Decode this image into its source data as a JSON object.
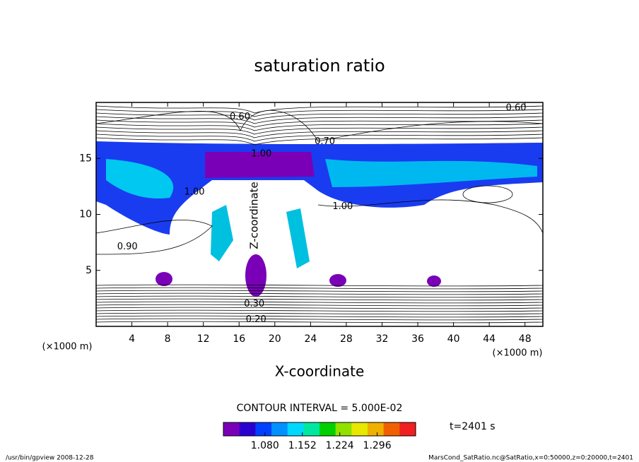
{
  "chart_data": {
    "type": "contour",
    "title": "saturation ratio",
    "x_label": "X-coordinate",
    "y_label": "Z-coordinate",
    "x_unit": "(×1000 m)",
    "xlim": [
      0,
      50
    ],
    "ylim": [
      0,
      20
    ],
    "xticks": [
      4,
      8,
      12,
      16,
      20,
      24,
      28,
      32,
      36,
      40,
      44,
      48
    ],
    "yticks": [
      5,
      10,
      15
    ],
    "contour_labels": [
      {
        "label": "0.60",
        "x": 16.1,
        "y": 18.7
      },
      {
        "label": "0.60",
        "x": 47,
        "y": 19.5
      },
      {
        "label": "0.70",
        "x": 25.6,
        "y": 16.5
      },
      {
        "label": "1.00",
        "x": 18.5,
        "y": 15.4
      },
      {
        "label": "1.00",
        "x": 11,
        "y": 12
      },
      {
        "label": "1.00",
        "x": 27.6,
        "y": 10.7
      },
      {
        "label": "0.90",
        "x": 3.5,
        "y": 7.1
      },
      {
        "label": "0.30",
        "x": 17.7,
        "y": 2
      },
      {
        "label": "0.20",
        "x": 17.9,
        "y": 0.6
      }
    ],
    "contour_interval": "CONTOUR INTERVAL = 5.000E-02",
    "time_label": "t=2401 s",
    "clim": [
      1.0,
      1.37
    ],
    "colormap": [
      "#7a00b8",
      "#2a00d0",
      "#0040ff",
      "#0090ff",
      "#00d8ff",
      "#00e8a0",
      "#00d000",
      "#90e000",
      "#e8e800",
      "#f0b000",
      "#f06000",
      "#f02020"
    ],
    "cticks": [
      {
        "value": 1.08,
        "label": "1.080"
      },
      {
        "value": 1.152,
        "label": "1.152"
      },
      {
        "value": 1.224,
        "label": "1.224"
      },
      {
        "value": 1.296,
        "label": "1.296"
      }
    ],
    "footer_left": "/usr/bin/gpview  2008-12-28",
    "footer_right": "MarsCond_SatRatio.nc@SatRatio,x=0:50000,z=0:20000,t=2401"
  }
}
